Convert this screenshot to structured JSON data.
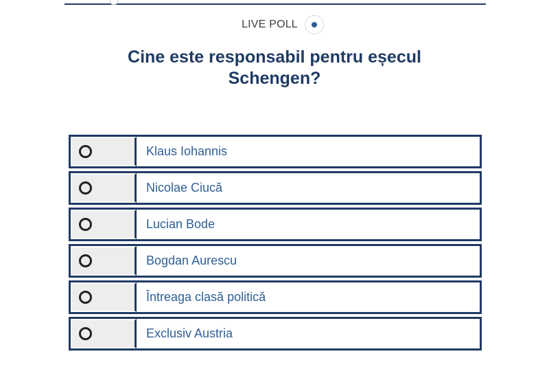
{
  "poll": {
    "live_label": "LIVE POLL",
    "question": "Cine este responsabil pentru eșecul Schengen?",
    "options": [
      {
        "label": "Klaus Iohannis"
      },
      {
        "label": "Nicolae Ciucă"
      },
      {
        "label": "Lucian Bode"
      },
      {
        "label": "Bogdan Aurescu"
      },
      {
        "label": "Întreaga clasă politică"
      },
      {
        "label": "Exclusiv Austria"
      }
    ]
  },
  "colors": {
    "navy": "#1f3b64",
    "option_text": "#2f5f94",
    "radio_bg": "#ededed",
    "live_dot": "#2d5f95"
  }
}
